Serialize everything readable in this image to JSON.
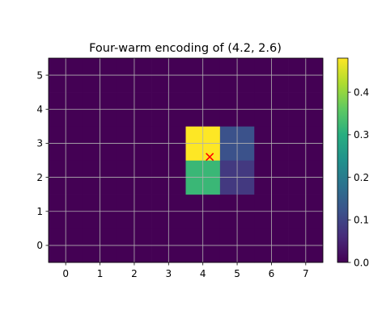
{
  "chart_data": {
    "type": "heatmap",
    "title": "Four-warm encoding of (4.2, 2.6)",
    "x": [
      0,
      1,
      2,
      3,
      4,
      5,
      6,
      7
    ],
    "y": [
      0,
      1,
      2,
      3,
      4,
      5
    ],
    "xlim": [
      -0.5,
      7.5
    ],
    "ylim": [
      -0.5,
      5.5
    ],
    "x_ticks": [
      "0",
      "1",
      "2",
      "3",
      "4",
      "5",
      "6",
      "7"
    ],
    "y_ticks": [
      "0",
      "1",
      "2",
      "3",
      "4",
      "5"
    ],
    "grid": true,
    "cells": [
      {
        "x": 4,
        "y": 3,
        "value": 0.48
      },
      {
        "x": 5,
        "y": 3,
        "value": 0.12
      },
      {
        "x": 4,
        "y": 2,
        "value": 0.32
      },
      {
        "x": 5,
        "y": 2,
        "value": 0.08
      }
    ],
    "default_value": 0.0,
    "marker": {
      "x": 4.2,
      "y": 2.6,
      "symbol": "x",
      "color": "#ff0000"
    },
    "colorbar": {
      "colormap": "viridis",
      "range": [
        0.0,
        0.48
      ],
      "ticks": [
        0.0,
        0.1,
        0.2,
        0.3,
        0.4
      ],
      "tick_labels": [
        "0.0",
        "0.1",
        "0.2",
        "0.3",
        "0.4"
      ]
    }
  }
}
